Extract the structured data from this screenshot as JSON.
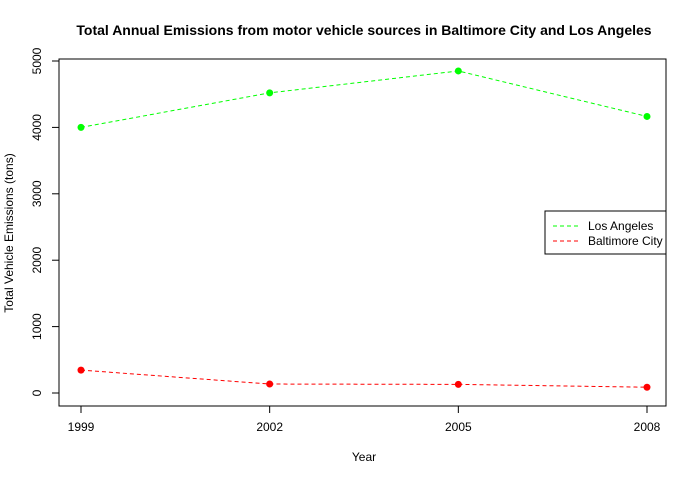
{
  "chart_data": {
    "type": "line",
    "title": "Total Annual Emissions from motor vehicle sources in Baltimore City and Los Angeles",
    "xlabel": "Year",
    "ylabel": "Total Vehicle Emissions (tons)",
    "x": [
      1999,
      2002,
      2005,
      2008
    ],
    "x_tick_labels": [
      "1999",
      "2002",
      "2005",
      "2008"
    ],
    "y_ticks": [
      0,
      1000,
      2000,
      3000,
      4000,
      5000
    ],
    "y_tick_labels": [
      "0",
      "1000",
      "2000",
      "3000",
      "4000",
      "5000"
    ],
    "ylim": [
      0,
      5000
    ],
    "grid": false,
    "legend_position": "right",
    "series": [
      {
        "name": "Los Angeles",
        "color": "#00ff00",
        "line_style": "dashed",
        "marker": "filled-circle",
        "values": [
          4000,
          4520,
          4850,
          4165
        ]
      },
      {
        "name": "Baltimore City",
        "color": "#ff0000",
        "line_style": "dashed",
        "marker": "filled-circle",
        "values": [
          345,
          135,
          130,
          87
        ]
      }
    ]
  }
}
